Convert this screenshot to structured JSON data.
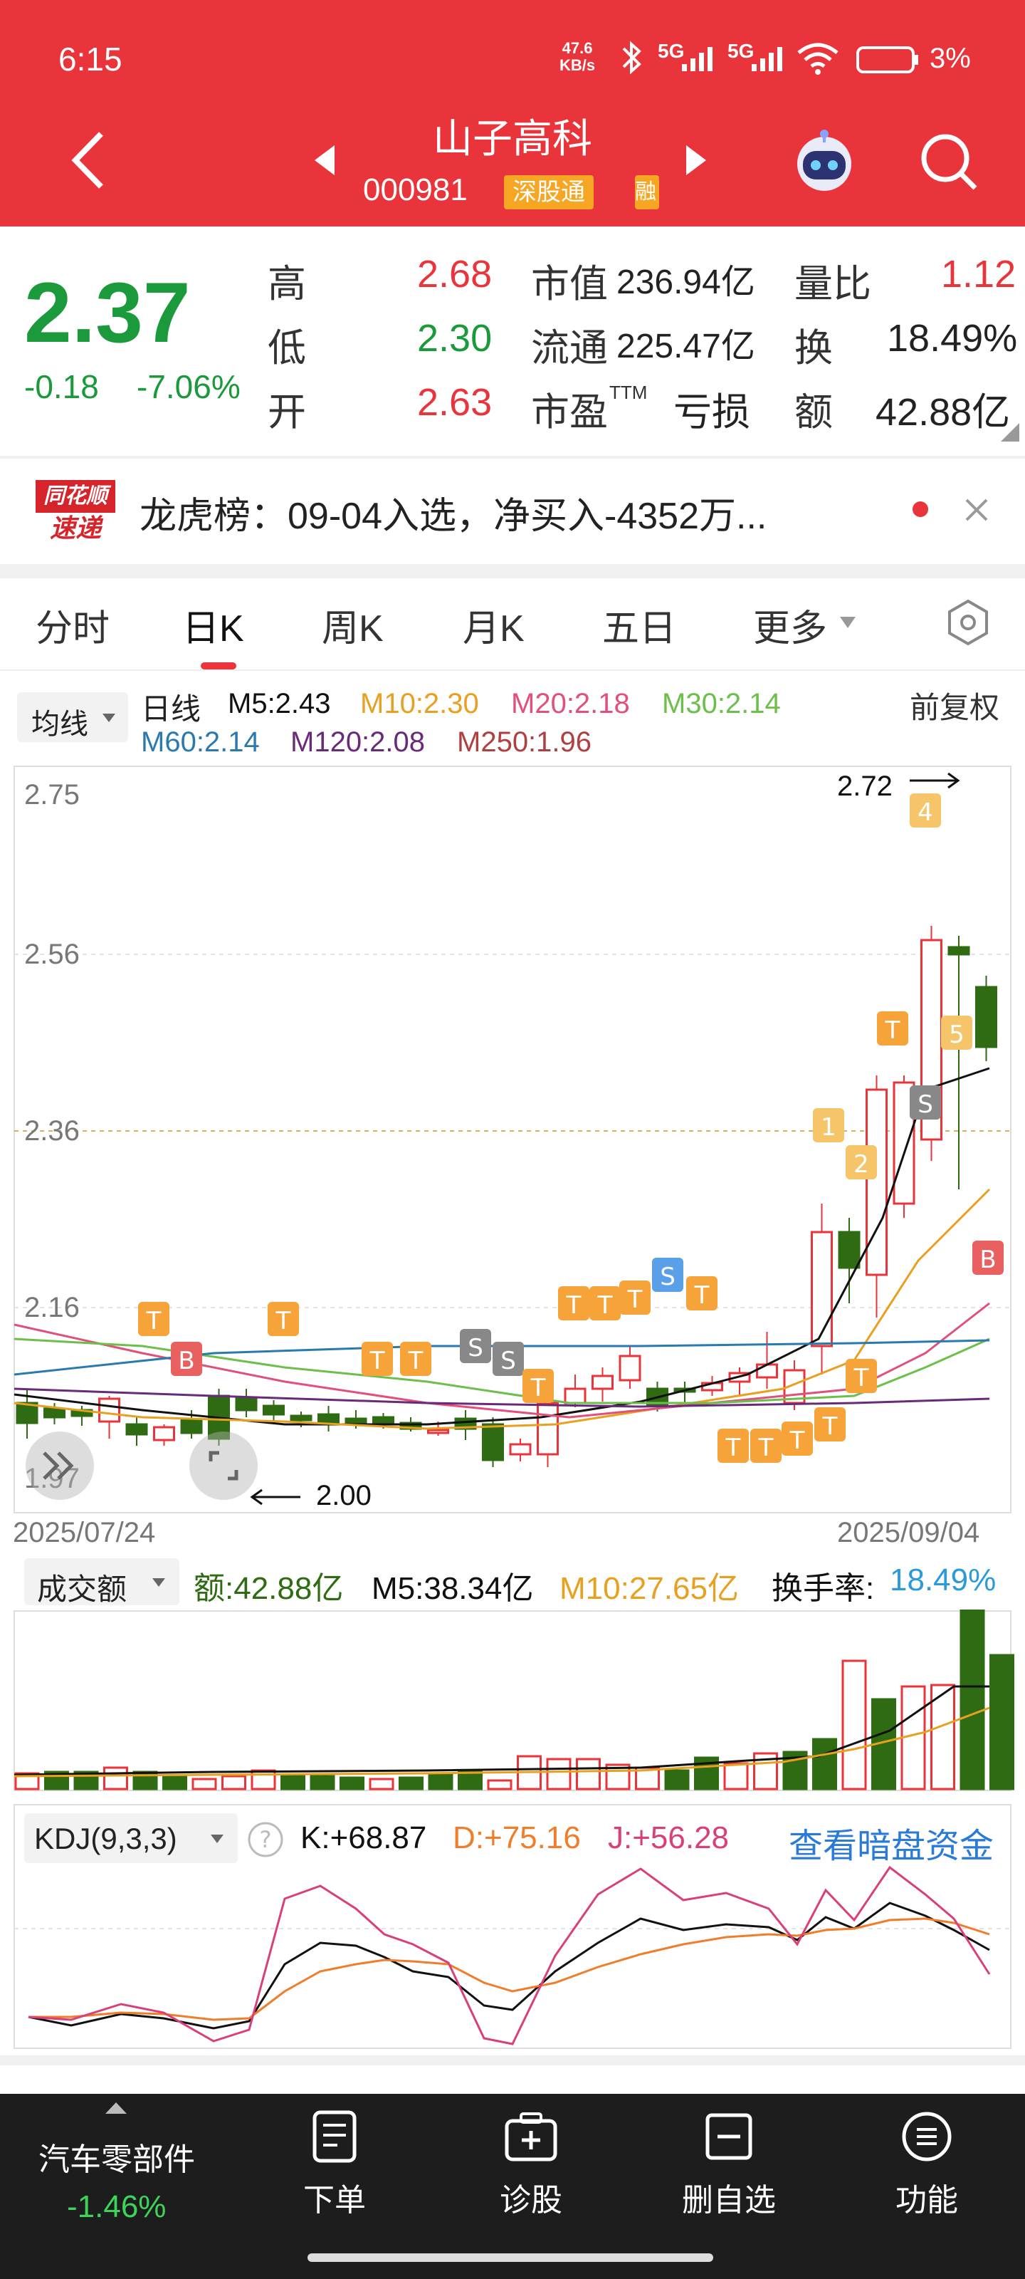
{
  "status_bar": {
    "time": "6:15",
    "net_speed_value": "47.6",
    "net_speed_unit": "KB/s",
    "signal1": "5G",
    "signal2": "5G",
    "battery": "3%"
  },
  "header": {
    "title": "山子高科",
    "code": "000981",
    "badge": "深股通",
    "badge2": "融"
  },
  "quote": {
    "price": "2.37",
    "change": "-0.18",
    "change_pct": "-7.06%",
    "high_label": "高",
    "high": "2.68",
    "low_label": "低",
    "low": "2.30",
    "open_label": "开",
    "open": "2.63",
    "mcap_label": "市值",
    "mcap": "236.94亿",
    "float_label": "流通",
    "float": "225.47亿",
    "pe_label": "市盈",
    "pe_sup": "TTM",
    "pe": "亏损",
    "vol_ratio_label": "量比",
    "vol_ratio": "1.12",
    "turnover_label": "换",
    "turnover": "18.49%",
    "amount_label": "额",
    "amount": "42.88亿"
  },
  "news": {
    "logo_top": "同花顺",
    "logo_bottom": "速递",
    "text": "龙虎榜：09-04入选，净买入-4352万..."
  },
  "tabs": [
    {
      "label": "分时"
    },
    {
      "label": "日K"
    },
    {
      "label": "周K"
    },
    {
      "label": "月K"
    },
    {
      "label": "五日"
    },
    {
      "label": "更多"
    }
  ],
  "kline": {
    "indicator_select": "均线",
    "period": "日线",
    "ma5": "M5:2.43",
    "ma10": "M10:2.30",
    "ma20": "M20:2.18",
    "ma30": "M30:2.14",
    "ma60": "M60:2.14",
    "ma120": "M120:2.08",
    "ma250": "M250:1.96",
    "adjust": "前复权",
    "y_ticks": [
      "2.75",
      "2.56",
      "2.36",
      "2.16",
      "1.97"
    ],
    "max_label": "2.72",
    "min_label": "2.00",
    "date_start": "2025/07/24",
    "date_end": "2025/09/04",
    "colors": {
      "up": "#e8343a",
      "down": "#2e6b12",
      "ma5": "#111111",
      "ma10": "#e8a020",
      "ma20": "#e0507a",
      "ma30": "#6cbf4a",
      "ma60": "#2a7ab0",
      "ma120": "#6a2a7a",
      "ma250": "#b04040"
    }
  },
  "volume": {
    "select": "成交额",
    "amount": "额:42.88亿",
    "m5": "M5:38.34亿",
    "m10": "M10:27.65亿",
    "turnover_label": "换手率:",
    "turnover": "18.49%"
  },
  "kdj": {
    "select": "KDJ(9,3,3)",
    "k": "K:+68.87",
    "d": "D:+75.16",
    "j": "J:+56.28",
    "link": "查看暗盘资金"
  },
  "bottom_nav": {
    "sector": "汽车零部件",
    "sector_change": "-1.46%",
    "items": [
      {
        "label": "下单"
      },
      {
        "label": "诊股"
      },
      {
        "label": "删自选"
      },
      {
        "label": "功能"
      }
    ]
  }
}
